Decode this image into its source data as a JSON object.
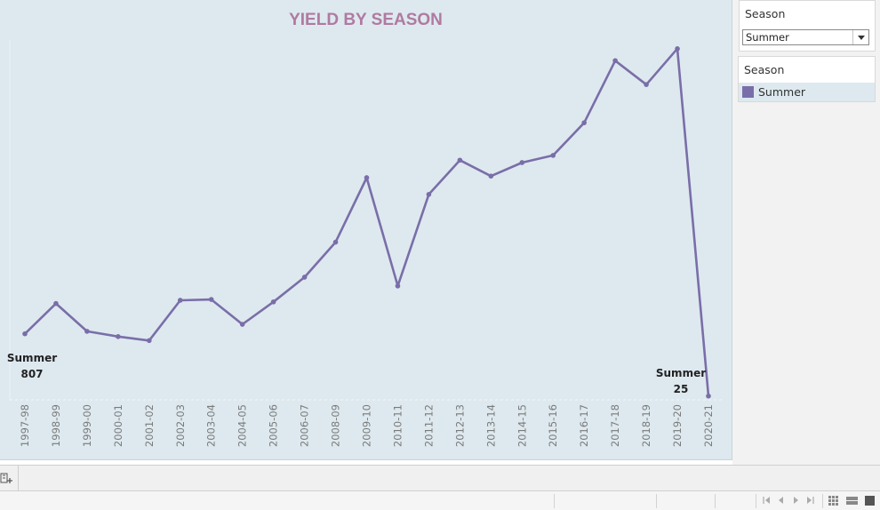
{
  "chart": {
    "title": "YIELD BY SEASON"
  },
  "chart_data": {
    "type": "line",
    "title": "YIELD BY SEASON",
    "x": [
      "1997-98",
      "1998-99",
      "1999-00",
      "2000-01",
      "2001-02",
      "2002-03",
      "2003-04",
      "2004-05",
      "2005-06",
      "2006-07",
      "2008-09",
      "2009-10",
      "2010-11",
      "2011-12",
      "2012-13",
      "2013-14",
      "2014-15",
      "2015-16",
      "2016-17",
      "2017-18",
      "2018-19",
      "2019-20",
      "2020-21"
    ],
    "series": [
      {
        "name": "Summer",
        "color": "#7a6ea8",
        "values": [
          807,
          1188,
          838,
          772,
          722,
          1228,
          1238,
          926,
          1208,
          1518,
          1958,
          2768,
          1408,
          2558,
          2988,
          2788,
          2958,
          3048,
          3458,
          4238,
          3938,
          4388,
          25
        ]
      }
    ],
    "ylim": [
      0,
      5000
    ],
    "grid": false,
    "annotations": [
      {
        "series": "Summer",
        "index": 0,
        "label": "Summer",
        "value_label": "807"
      },
      {
        "series": "Summer",
        "index": 22,
        "label": "Summer",
        "value_label": "25"
      }
    ]
  },
  "filter": {
    "label": "Season",
    "selected": "Summer"
  },
  "legend": {
    "title": "Season",
    "items": [
      {
        "label": "Summer",
        "color": "#7a6ea8"
      }
    ]
  },
  "icons": {
    "new_sheet": "new-sheet-icon",
    "dropdown": "chevron-down-icon",
    "nav": [
      "first-page-icon",
      "prev-page-icon",
      "next-page-icon",
      "last-page-icon"
    ],
    "views": [
      "grid-view-icon",
      "list-view-icon",
      "single-view-icon"
    ]
  }
}
